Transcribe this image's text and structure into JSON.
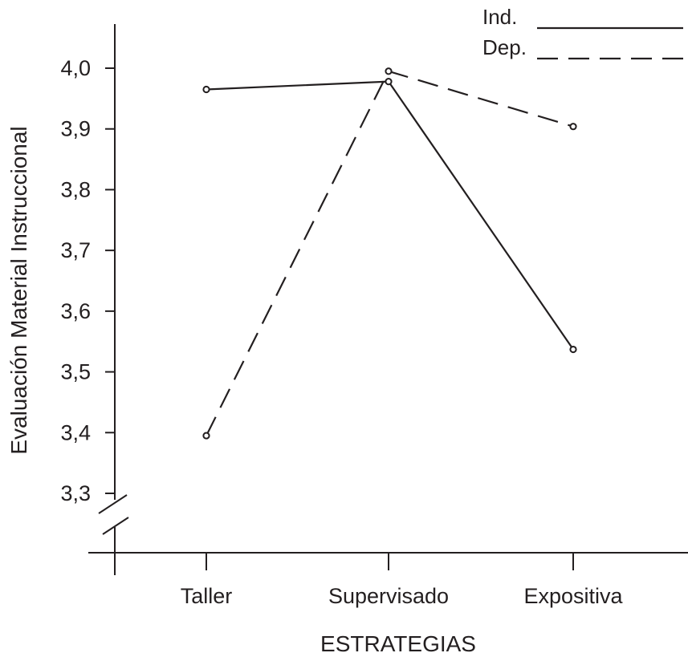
{
  "chart_data": {
    "type": "line",
    "xlabel": "ESTRATEGIAS",
    "ylabel": "Evaluación Material Instruccional",
    "categories": [
      "Taller",
      "Supervisado",
      "Expositiva"
    ],
    "ylim": [
      3.3,
      4.0
    ],
    "yticks": [
      "3,3",
      "3,4",
      "3,5",
      "3,6",
      "3,7",
      "3,8",
      "3,9",
      "4,0"
    ],
    "ytick_values": [
      3.3,
      3.4,
      3.5,
      3.6,
      3.7,
      3.8,
      3.9,
      4.0
    ],
    "axis_break": true,
    "grid": false,
    "legend_position": "top-right",
    "series": [
      {
        "name": "Ind.",
        "style": "solid",
        "values": [
          3.965,
          3.978,
          3.537
        ]
      },
      {
        "name": "Dep.",
        "style": "dashed",
        "values": [
          3.395,
          3.995,
          3.904
        ]
      }
    ],
    "colors": {
      "line": "#231f20"
    }
  }
}
